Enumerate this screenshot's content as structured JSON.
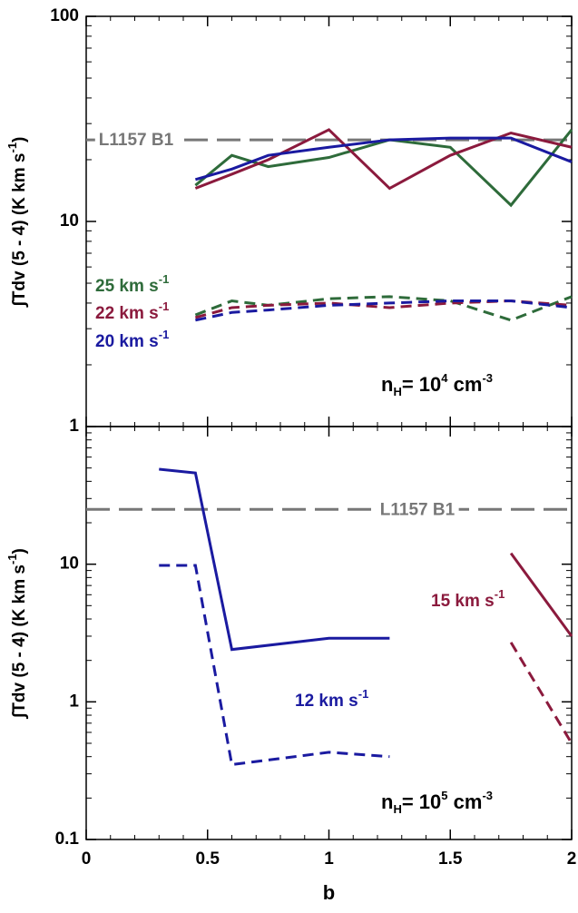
{
  "chart_data": [
    {
      "type": "line",
      "log_y": true,
      "ylabel": [
        {
          "text": "∫Tdv (5 - 4) (K km s"
        },
        {
          "text": "-1",
          "shift": "super"
        },
        {
          "text": ")"
        }
      ],
      "xlim": [
        0,
        2
      ],
      "xticks": [
        0,
        0.5,
        1,
        1.5,
        2
      ],
      "ylim": [
        1,
        100
      ],
      "yticks": [
        1,
        10,
        100
      ],
      "reference": {
        "label": "L1157 B1",
        "value": 25,
        "color": "#777777"
      },
      "series": [
        {
          "color": "#2e6b3a",
          "style": "solid",
          "x": [
            0.45,
            0.6,
            0.75,
            1.0,
            1.25,
            1.5,
            1.75,
            2.0
          ],
          "values": [
            15,
            21,
            18.5,
            20.5,
            25,
            23,
            12,
            28
          ]
        },
        {
          "color": "#8b1a3d",
          "style": "solid",
          "x": [
            0.45,
            0.6,
            0.75,
            1.0,
            1.25,
            1.5,
            1.75,
            2.0
          ],
          "values": [
            14.5,
            17,
            20,
            28,
            14.5,
            21,
            27,
            23
          ]
        },
        {
          "color": "#1a1aa0",
          "style": "solid",
          "x": [
            0.45,
            0.6,
            0.75,
            1.0,
            1.25,
            1.5,
            1.75,
            2.0
          ],
          "values": [
            16,
            18,
            21,
            23,
            25,
            25.5,
            25.5,
            19.5
          ]
        },
        {
          "color": "#2e6b3a",
          "style": "dashed",
          "x": [
            0.45,
            0.6,
            0.75,
            1.0,
            1.25,
            1.5,
            1.75,
            2.0
          ],
          "values": [
            3.5,
            4.1,
            3.9,
            4.2,
            4.3,
            4.1,
            3.3,
            4.3
          ]
        },
        {
          "color": "#8b1a3d",
          "style": "dashed",
          "x": [
            0.45,
            0.6,
            0.75,
            1.0,
            1.25,
            1.5,
            1.75,
            2.0
          ],
          "values": [
            3.4,
            3.8,
            3.9,
            4.0,
            3.8,
            4.0,
            4.1,
            3.9
          ]
        },
        {
          "color": "#1a1aa0",
          "style": "dashed",
          "x": [
            0.45,
            0.6,
            0.75,
            1.0,
            1.25,
            1.5,
            1.75,
            2.0
          ],
          "values": [
            3.3,
            3.6,
            3.7,
            3.9,
            4.0,
            4.1,
            4.1,
            3.8
          ]
        }
      ],
      "labels": [
        {
          "color": "#2e6b3a",
          "parts": [
            {
              "text": "25 km s"
            },
            {
              "text": "-1",
              "shift": "super"
            }
          ]
        },
        {
          "color": "#8b1a3d",
          "parts": [
            {
              "text": "22 km s"
            },
            {
              "text": "-1",
              "shift": "super"
            }
          ]
        },
        {
          "color": "#1a1aa0",
          "parts": [
            {
              "text": "20 km s"
            },
            {
              "text": "-1",
              "shift": "super"
            }
          ]
        },
        {
          "color": "#000000",
          "parts": [
            {
              "text": "n"
            },
            {
              "text": "H",
              "shift": "sub"
            },
            {
              "text": "= 10"
            },
            {
              "text": "4",
              "shift": "super"
            },
            {
              "text": " cm"
            },
            {
              "text": "-3",
              "shift": "super"
            }
          ]
        }
      ]
    },
    {
      "type": "line",
      "log_y": true,
      "ylabel": [
        {
          "text": "∫Tdv (5 - 4) (K km s"
        },
        {
          "text": "-1",
          "shift": "super"
        },
        {
          "text": ")"
        }
      ],
      "xlabel": "b",
      "xlim": [
        0,
        2
      ],
      "xticks": [
        0,
        0.5,
        1,
        1.5,
        2
      ],
      "ylim": [
        0.1,
        100
      ],
      "yticks": [
        0.1,
        1,
        10
      ],
      "reference": {
        "label": "L1157 B1",
        "value": 25,
        "color": "#777777"
      },
      "series": [
        {
          "color": "#1a1aa0",
          "style": "solid",
          "x": [
            0.3,
            0.45,
            0.6,
            1.0,
            1.25
          ],
          "values": [
            49,
            46,
            2.4,
            2.9,
            2.9
          ]
        },
        {
          "color": "#1a1aa0",
          "style": "dashed",
          "x": [
            0.3,
            0.45,
            0.6,
            1.0,
            1.25
          ],
          "values": [
            9.8,
            9.8,
            0.35,
            0.43,
            0.4
          ]
        },
        {
          "color": "#8b1a3d",
          "style": "solid",
          "x": [
            1.75,
            2.0
          ],
          "values": [
            12,
            3
          ]
        },
        {
          "color": "#8b1a3d",
          "style": "dashed",
          "x": [
            1.75,
            2.0
          ],
          "values": [
            2.7,
            0.5
          ]
        }
      ],
      "labels": [
        {
          "color": "#8b1a3d",
          "parts": [
            {
              "text": "15 km s"
            },
            {
              "text": "-1",
              "shift": "super"
            }
          ]
        },
        {
          "color": "#1a1aa0",
          "parts": [
            {
              "text": "12 km s"
            },
            {
              "text": "-1",
              "shift": "super"
            }
          ]
        },
        {
          "color": "#000000",
          "parts": [
            {
              "text": "n"
            },
            {
              "text": "H",
              "shift": "sub"
            },
            {
              "text": "= 10"
            },
            {
              "text": "5",
              "shift": "super"
            },
            {
              "text": " cm"
            },
            {
              "text": "-3",
              "shift": "super"
            }
          ]
        }
      ]
    }
  ]
}
